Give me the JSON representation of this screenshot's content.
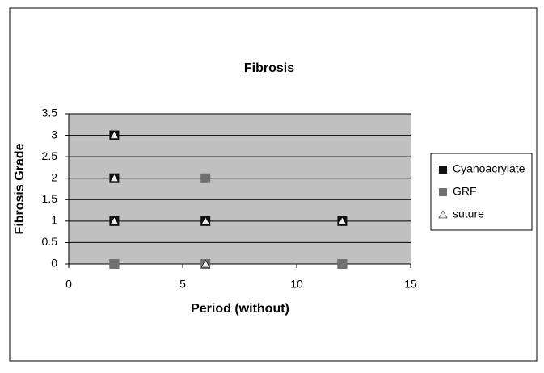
{
  "chart_data": {
    "type": "scatter",
    "title": "Fibrosis",
    "x_label": "Period (without)",
    "y_label": "Fibrosis Grade",
    "xlim": [
      0,
      15
    ],
    "xticks": [
      0,
      5,
      10,
      15
    ],
    "ylim": [
      0,
      3.5
    ],
    "yticks": [
      0,
      0.5,
      1,
      1.5,
      2,
      2.5,
      3,
      3.5
    ],
    "grid": true,
    "legend": "right",
    "series": [
      {
        "name": "Cyanoacrylate",
        "color": "#111111",
        "marker": "square",
        "x": [
          2,
          2,
          2,
          2,
          6,
          12,
          12
        ],
        "values": [
          3,
          2,
          1,
          0,
          1,
          1,
          0
        ]
      },
      {
        "name": "GRF",
        "color": "#707070",
        "marker": "square",
        "x": [
          2,
          6,
          6,
          12
        ],
        "values": [
          0,
          2,
          0,
          0
        ]
      },
      {
        "name": "suture",
        "color": "#ececec",
        "marker": "triangle",
        "x": [
          2,
          2,
          2,
          6,
          6,
          12
        ],
        "values": [
          3,
          2,
          1,
          1,
          0,
          1
        ]
      }
    ]
  }
}
